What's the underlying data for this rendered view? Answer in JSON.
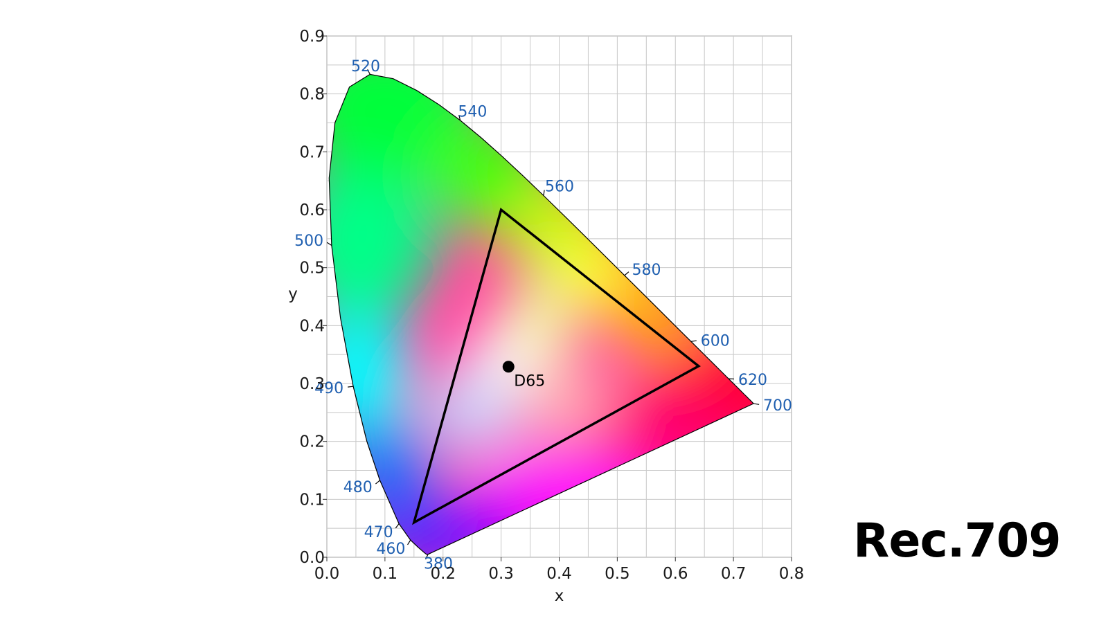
{
  "title": "Rec.709",
  "chart_data": {
    "type": "scatter",
    "xlabel": "x",
    "ylabel": "y",
    "xlim": [
      0,
      0.8
    ],
    "ylim": [
      0,
      0.9
    ],
    "xticks": [
      "0.0",
      "0.1",
      "0.2",
      "0.3",
      "0.4",
      "0.5",
      "0.6",
      "0.7",
      "0.8"
    ],
    "yticks": [
      "0.0",
      "0.1",
      "0.2",
      "0.3",
      "0.4",
      "0.5",
      "0.6",
      "0.7",
      "0.8",
      "0.9"
    ],
    "grid": true,
    "spectral_locus": [
      [
        0.1741,
        0.005
      ],
      [
        0.1738,
        0.0049
      ],
      [
        0.1733,
        0.0048
      ],
      [
        0.1726,
        0.0048
      ],
      [
        0.1714,
        0.0051
      ],
      [
        0.1689,
        0.0069
      ],
      [
        0.1644,
        0.0109
      ],
      [
        0.1566,
        0.0177
      ],
      [
        0.144,
        0.0297
      ],
      [
        0.1241,
        0.0578
      ],
      [
        0.0913,
        0.1327
      ],
      [
        0.0687,
        0.2007
      ],
      [
        0.0454,
        0.295
      ],
      [
        0.0235,
        0.4127
      ],
      [
        0.0082,
        0.5384
      ],
      [
        0.0039,
        0.6548
      ],
      [
        0.0139,
        0.7502
      ],
      [
        0.0389,
        0.812
      ],
      [
        0.0743,
        0.8338
      ],
      [
        0.1142,
        0.8262
      ],
      [
        0.1547,
        0.8059
      ],
      [
        0.1929,
        0.7816
      ],
      [
        0.2296,
        0.7543
      ],
      [
        0.2658,
        0.7243
      ],
      [
        0.3016,
        0.6923
      ],
      [
        0.3373,
        0.6589
      ],
      [
        0.3731,
        0.6245
      ],
      [
        0.4087,
        0.5896
      ],
      [
        0.4441,
        0.5547
      ],
      [
        0.4788,
        0.5202
      ],
      [
        0.5125,
        0.4866
      ],
      [
        0.5448,
        0.4544
      ],
      [
        0.5752,
        0.4242
      ],
      [
        0.6029,
        0.3965
      ],
      [
        0.627,
        0.3725
      ],
      [
        0.6482,
        0.3514
      ],
      [
        0.6658,
        0.334
      ],
      [
        0.6801,
        0.3197
      ],
      [
        0.6915,
        0.3083
      ],
      [
        0.7006,
        0.2993
      ],
      [
        0.7079,
        0.292
      ],
      [
        0.714,
        0.2859
      ],
      [
        0.719,
        0.2809
      ],
      [
        0.723,
        0.277
      ],
      [
        0.726,
        0.274
      ],
      [
        0.7283,
        0.2717
      ],
      [
        0.73,
        0.27
      ],
      [
        0.7311,
        0.2689
      ],
      [
        0.732,
        0.268
      ],
      [
        0.7327,
        0.2673
      ],
      [
        0.7334,
        0.2666
      ],
      [
        0.734,
        0.266
      ],
      [
        0.7344,
        0.2656
      ],
      [
        0.7347,
        0.2653
      ]
    ],
    "wavelength_labels": [
      {
        "label": "380",
        "x": 0.1741,
        "y": 0.005,
        "anchor": "start"
      },
      {
        "label": "460",
        "x": 0.144,
        "y": 0.0297,
        "anchor": "end"
      },
      {
        "label": "470",
        "x": 0.1241,
        "y": 0.0578,
        "anchor": "end"
      },
      {
        "label": "480",
        "x": 0.0913,
        "y": 0.1327,
        "anchor": "end"
      },
      {
        "label": "490",
        "x": 0.0454,
        "y": 0.295,
        "anchor": "end"
      },
      {
        "label": "500",
        "x": 0.0082,
        "y": 0.5384,
        "anchor": "end"
      },
      {
        "label": "520",
        "x": 0.0743,
        "y": 0.8338,
        "anchor": "middle"
      },
      {
        "label": "540",
        "x": 0.2296,
        "y": 0.7543,
        "anchor": "start"
      },
      {
        "label": "560",
        "x": 0.3731,
        "y": 0.6245,
        "anchor": "start"
      },
      {
        "label": "580",
        "x": 0.5125,
        "y": 0.4866,
        "anchor": "start"
      },
      {
        "label": "600",
        "x": 0.627,
        "y": 0.3725,
        "anchor": "start"
      },
      {
        "label": "620",
        "x": 0.6915,
        "y": 0.3083,
        "anchor": "start"
      },
      {
        "label": "700",
        "x": 0.7347,
        "y": 0.2653,
        "anchor": "start"
      }
    ],
    "gamut_triangle": [
      [
        0.64,
        0.33
      ],
      [
        0.3,
        0.6
      ],
      [
        0.15,
        0.06
      ]
    ],
    "white_point": {
      "label": "D65",
      "x": 0.3127,
      "y": 0.329
    },
    "colors": {
      "wavelength_label": "#1f5fb0",
      "triangle": "#000000",
      "grid": "#c8c8c8",
      "red": "#ff0033",
      "green": "#00ff3a",
      "blue": "#4a20ff",
      "yellow": "#ffff22",
      "cyan": "#00ffff",
      "magenta": "#ff10ff",
      "violet": "#7a10ff",
      "white": "#ffffff"
    }
  }
}
